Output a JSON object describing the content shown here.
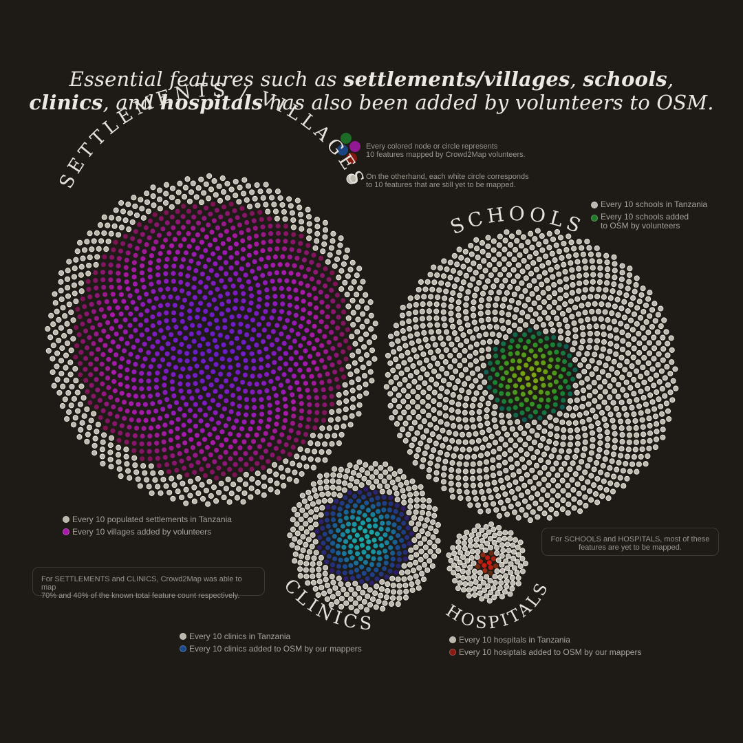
{
  "headline": {
    "p1": "Essential features such as ",
    "b1": "settlements/villages",
    "p2": ", ",
    "b2": "schools",
    "p3": ",",
    "b3": "clinics",
    "p4": ", and ",
    "b4": "hospitals",
    "p5": " has also been added by volunteers to OSM."
  },
  "key": {
    "colored_line1": "Every colored node or circle represents",
    "colored_line2": "10 features mapped by Crowd2Map volunteers.",
    "white_line1": "On the otherhand, each white circle corresponds",
    "white_line2": "to 10 features that are still yet to be mapped.",
    "white_color": "#bdb8ae"
  },
  "titles": {
    "settlements": "SETTLEMENTS / VILLAGES",
    "schools": "SCHOOLS",
    "clinics": "CLINICS",
    "hospitals": "HOSPITALS"
  },
  "legends": {
    "settlements_total": "Every 10 populated settlements in Tanzania",
    "settlements_added": "Every 10 villages added by volunteers",
    "schools_total": "Every 10 schools in Tanzania",
    "schools_added_line1": "Every 10 schools added",
    "schools_added_line2": "to OSM by volunteers",
    "clinics_total": "Every 10 clinics in Tanzania",
    "clinics_added": "Every 10 clinics added to OSM by our mappers",
    "hospitals_total": "Every 10 hospitals in Tanzania",
    "hospitals_added": "Every 10 hosiptals added to OSM by our mappers"
  },
  "notes": {
    "left_line1": "For SETTLEMENTS and CLINICS, Crowd2Map was able to map",
    "left_line2": "70% and 40% of the known total feature count respectively.",
    "right_line1": "For SCHOOLS and HOSPITALS, most of these",
    "right_line2": "features are yet to be mapped."
  },
  "chart_data": {
    "type": "phyllotaxis-dot-clusters",
    "unit": "each dot = 10 features",
    "series": [
      {
        "name": "SETTLEMENTS / VILLAGES",
        "total_dots": 1500,
        "mapped_dots": 1050,
        "mapped_share": 0.7,
        "colors": {
          "inner": "#6a1cc8",
          "mid": "#a81aaa",
          "outer": "#7a1450"
        }
      },
      {
        "name": "SCHOOLS",
        "total_dots": 1340,
        "mapped_dots": 130,
        "colors": {
          "inner": "#7aa410",
          "mid": "#1f8a2a",
          "outer": "#0f5c55"
        }
      },
      {
        "name": "CLINICS",
        "total_dots": 460,
        "mapped_dots": 184,
        "mapped_share": 0.4,
        "colors": {
          "inner": "#19a8a8",
          "mid": "#1a4a8c",
          "outer": "#2e1a6a"
        }
      },
      {
        "name": "HOSPITALS",
        "total_dots": 150,
        "mapped_dots": 12,
        "colors": {
          "inner": "#d01a12",
          "mid": "#9a2a12",
          "outer": "#5a2a10"
        }
      }
    ]
  }
}
